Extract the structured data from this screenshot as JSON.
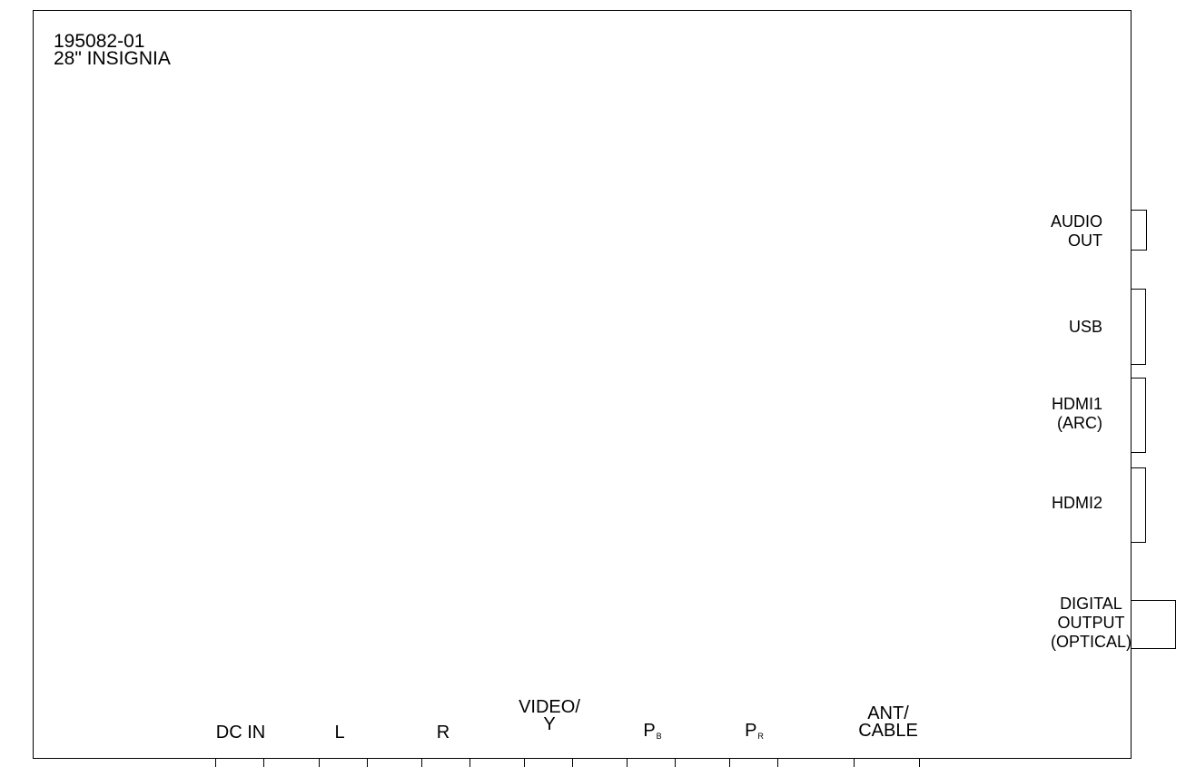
{
  "model": {
    "number": "195082-01",
    "name": "28\" INSIGNIA"
  },
  "side_ports": [
    {
      "id": "audio-out",
      "lines": [
        "AUDIO",
        "OUT"
      ]
    },
    {
      "id": "usb",
      "lines": [
        "USB"
      ]
    },
    {
      "id": "hdmi1",
      "lines": [
        "HDMI1",
        "(ARC)"
      ]
    },
    {
      "id": "hdmi2",
      "lines": [
        "HDMI2"
      ]
    },
    {
      "id": "digital-output",
      "lines": [
        "DIGITAL",
        "OUTPUT",
        "(OPTICAL)"
      ]
    }
  ],
  "bottom_ports": [
    {
      "id": "dc-in",
      "label": "DC IN"
    },
    {
      "id": "audio-l",
      "label": "L"
    },
    {
      "id": "audio-r",
      "label": "R"
    },
    {
      "id": "video-y",
      "lines": [
        "VIDEO/",
        "Y"
      ]
    },
    {
      "id": "pb",
      "main": "P",
      "sub": "B"
    },
    {
      "id": "pr",
      "main": "P",
      "sub": "R"
    },
    {
      "id": "ant-cable",
      "lines": [
        "ANT/",
        "CABLE"
      ]
    }
  ]
}
